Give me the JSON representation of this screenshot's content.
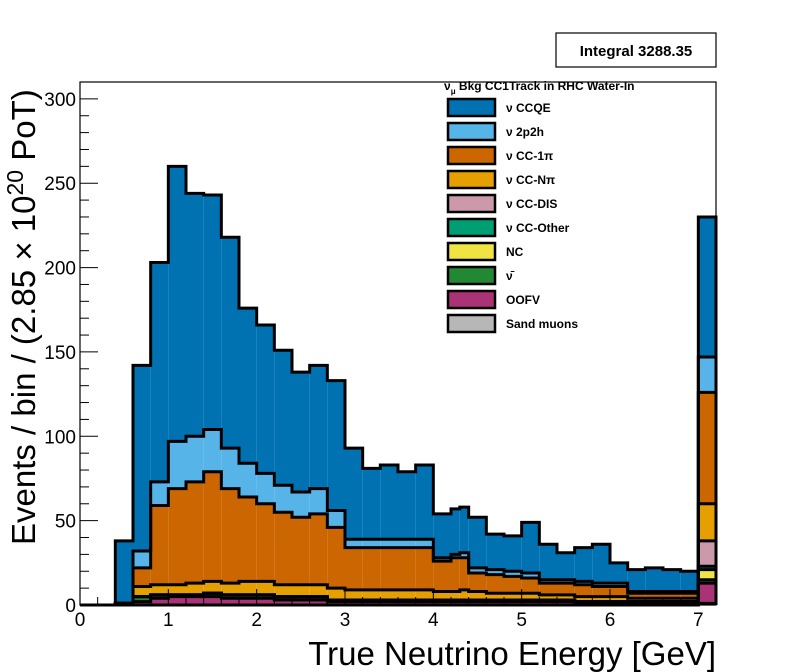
{
  "chart_data": {
    "type": "bar",
    "stacked": true,
    "histogram": true,
    "stats_box": "Integral 3288.35",
    "legend_title_prefix": "ν",
    "legend_title_sub": "μ",
    "legend_title_rest": " Bkg CC1Track in RHC Water-In",
    "xlabel": "True Neutrino Energy [GeV]",
    "ylabel_pre": "Events / bin / (2.85 × 10",
    "ylabel_exp": "20",
    "ylabel_post": " PoT)",
    "xlim": [
      0,
      7.2
    ],
    "ylim": [
      0,
      310
    ],
    "x_major_ticks": [
      0,
      1,
      2,
      3,
      4,
      5,
      6,
      7
    ],
    "y_major_ticks": [
      0,
      50,
      100,
      150,
      200,
      250,
      300
    ],
    "bin_edges": [
      0,
      0.2,
      0.4,
      0.6,
      0.8,
      1.0,
      1.2,
      1.4,
      1.6,
      1.8,
      2.0,
      2.2,
      2.4,
      2.6,
      2.8,
      3.0,
      3.2,
      3.4,
      3.6,
      3.8,
      4.0,
      4.2,
      4.3,
      4.4,
      4.6,
      4.8,
      5.0,
      5.2,
      5.4,
      5.6,
      5.8,
      6.0,
      6.2,
      6.4,
      6.6,
      6.8,
      7.0,
      7.2
    ],
    "series": [
      {
        "name": "Sand muons",
        "color": "#b7b7b7",
        "values": [
          0,
          0,
          0,
          0,
          0,
          0,
          0,
          0,
          0,
          0,
          0,
          0,
          0,
          0,
          0,
          0,
          0,
          0,
          0,
          0,
          0,
          0,
          0,
          0,
          0,
          0,
          0,
          0,
          0,
          0,
          0,
          0,
          0,
          0,
          0,
          0,
          1
        ]
      },
      {
        "name": "OOFV",
        "color": "#aa3377",
        "values": [
          0,
          0,
          0,
          2,
          4,
          5,
          5,
          5,
          4,
          4,
          4,
          3,
          3,
          3,
          2,
          2,
          2,
          2,
          2,
          2,
          2,
          2,
          2,
          2,
          2,
          2,
          2,
          2,
          2,
          1,
          1,
          1,
          1,
          1,
          1,
          1,
          12
        ]
      },
      {
        "name": "ν̄",
        "color": "#228833",
        "values": [
          0,
          0,
          1,
          3,
          2,
          1,
          1,
          2,
          2,
          2,
          2,
          2,
          2,
          2,
          1,
          1,
          1,
          1,
          1,
          1,
          1,
          1,
          1,
          1,
          1,
          1,
          1,
          1,
          1,
          1,
          1,
          1,
          1,
          1,
          1,
          1,
          2
        ]
      },
      {
        "name": "NC",
        "color": "#f0e442",
        "values": [
          0,
          0,
          0,
          0,
          0,
          0,
          0,
          0,
          0,
          0,
          0,
          0,
          0,
          0,
          0,
          0,
          0,
          0,
          0,
          0,
          0,
          0,
          0,
          0,
          0,
          0,
          0,
          0,
          0,
          0,
          0,
          0,
          0,
          0,
          0,
          0,
          6
        ]
      },
      {
        "name": "ν CC-Other",
        "color": "#009e73",
        "values": [
          0,
          0,
          0,
          0,
          0,
          0,
          0,
          0,
          0,
          0,
          0,
          0,
          0,
          0,
          0,
          0,
          0,
          0,
          0,
          0,
          0,
          0,
          0,
          0,
          0,
          0,
          0,
          0,
          0,
          0,
          0,
          0,
          0,
          0,
          0,
          0,
          2
        ]
      },
      {
        "name": "ν CC-DIS",
        "color": "#cc99aa",
        "values": [
          0,
          0,
          0,
          0,
          0,
          0,
          0,
          0,
          0,
          0,
          0,
          0,
          0,
          0,
          0,
          0,
          0,
          0,
          0,
          0,
          0,
          0,
          0,
          0,
          0,
          0,
          0,
          0,
          0,
          0,
          0,
          0,
          0,
          0,
          0,
          0,
          15
        ]
      },
      {
        "name": "ν CC-Nπ",
        "color": "#e69f00",
        "values": [
          0,
          0,
          0,
          6,
          6,
          6,
          7,
          7,
          7,
          8,
          8,
          7,
          7,
          7,
          7,
          6,
          6,
          6,
          6,
          6,
          5,
          5,
          6,
          5,
          4,
          4,
          4,
          3,
          3,
          3,
          3,
          3,
          2,
          2,
          2,
          2,
          22
        ]
      },
      {
        "name": "ν CC-1π",
        "color": "#cc6600",
        "values": [
          0,
          0,
          0,
          11,
          47,
          57,
          60,
          65,
          56,
          50,
          46,
          43,
          40,
          42,
          36,
          25,
          25,
          25,
          25,
          25,
          18,
          20,
          19,
          11,
          11,
          10,
          9,
          7,
          7,
          7,
          6,
          6,
          3,
          3,
          3,
          3,
          66
        ]
      },
      {
        "name": "ν 2p2h",
        "color": "#56b4e9",
        "values": [
          0,
          0,
          0,
          10,
          14,
          28,
          27,
          25,
          24,
          20,
          18,
          16,
          15,
          15,
          10,
          5,
          5,
          5,
          5,
          5,
          2,
          2,
          3,
          3,
          3,
          3,
          3,
          2,
          2,
          2,
          2,
          2,
          1,
          1,
          1,
          1,
          21
        ]
      },
      {
        "name": "ν CCQE",
        "color": "#0072b2",
        "values": [
          0,
          0,
          37,
          110,
          130,
          163,
          144,
          139,
          125,
          92,
          88,
          80,
          71,
          73,
          77,
          54,
          42,
          44,
          40,
          44,
          26,
          27,
          27,
          30,
          21,
          21,
          30,
          21,
          16,
          20,
          23,
          12,
          13,
          14,
          13,
          12,
          83
        ]
      }
    ]
  }
}
